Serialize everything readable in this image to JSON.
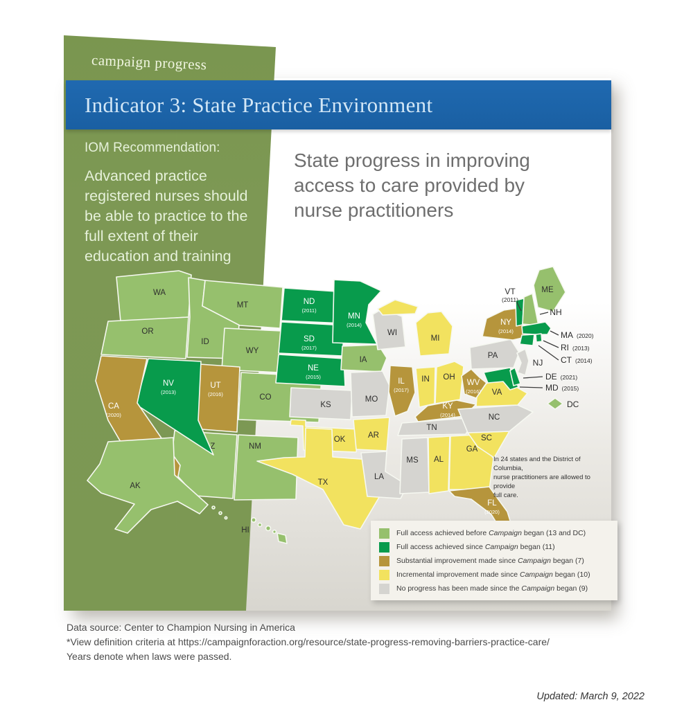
{
  "banner": {
    "tab_label": "campaign progress",
    "title": "Indicator 3: State Practice Environment"
  },
  "sidebar": {
    "heading": "IOM Recommendation:",
    "body": "Advanced practice\nregistered nurses should\nbe able to practice to the\nfull extent of their\neducation and training"
  },
  "main": {
    "title": "State progress in improving\naccess to care provided by\nnurse practitioners"
  },
  "map": {
    "note": "In 24 states and the District of Columbia,\nnurse practitioners are allowed to provide\nfull care.",
    "states": [
      {
        "id": "WA",
        "category": "full_before"
      },
      {
        "id": "OR",
        "category": "full_before"
      },
      {
        "id": "ID",
        "category": "full_before"
      },
      {
        "id": "MT",
        "category": "full_before"
      },
      {
        "id": "WY",
        "category": "full_before"
      },
      {
        "id": "CO",
        "category": "full_before"
      },
      {
        "id": "UT",
        "category": "substantial",
        "year_label": "(2016)"
      },
      {
        "id": "AZ",
        "category": "full_before"
      },
      {
        "id": "NM",
        "category": "full_before"
      },
      {
        "id": "NV",
        "category": "full_since",
        "year_label": "(2013)"
      },
      {
        "id": "CA",
        "category": "substantial",
        "year_label": "(2020)"
      },
      {
        "id": "ND",
        "category": "full_since",
        "year_label": "(2011)"
      },
      {
        "id": "SD",
        "category": "full_since",
        "year_label": "(2017)"
      },
      {
        "id": "NE",
        "category": "full_since",
        "year_label": "(2015)"
      },
      {
        "id": "KS",
        "category": "none"
      },
      {
        "id": "OK",
        "category": "incremental"
      },
      {
        "id": "TX",
        "category": "incremental"
      },
      {
        "id": "MN",
        "category": "full_since",
        "year_label": "(2014)"
      },
      {
        "id": "IA",
        "category": "full_before"
      },
      {
        "id": "MO",
        "category": "none"
      },
      {
        "id": "AR",
        "category": "incremental"
      },
      {
        "id": "LA",
        "category": "none"
      },
      {
        "id": "WI",
        "category": "none"
      },
      {
        "id": "IL",
        "category": "substantial",
        "year_label": "(2017)"
      },
      {
        "id": "MI",
        "category": "incremental"
      },
      {
        "id": "IN",
        "category": "incremental"
      },
      {
        "id": "OH",
        "category": "incremental"
      },
      {
        "id": "KY",
        "category": "substantial",
        "year_label": "(2014)"
      },
      {
        "id": "TN",
        "category": "none"
      },
      {
        "id": "MS",
        "category": "none"
      },
      {
        "id": "AL",
        "category": "incremental"
      },
      {
        "id": "GA",
        "category": "incremental"
      },
      {
        "id": "SC",
        "category": "incremental"
      },
      {
        "id": "NC",
        "category": "none"
      },
      {
        "id": "VA",
        "category": "incremental"
      },
      {
        "id": "WV",
        "category": "substantial",
        "year_label": "(2016)"
      },
      {
        "id": "FL",
        "category": "substantial",
        "year_label": "(2020)"
      },
      {
        "id": "PA",
        "category": "none"
      },
      {
        "id": "NY",
        "category": "substantial",
        "year_label": "(2014)"
      },
      {
        "id": "NJ",
        "category": "none"
      },
      {
        "id": "MD",
        "category": "full_since"
      },
      {
        "id": "DE",
        "category": "full_since"
      },
      {
        "id": "VT",
        "category": "full_since"
      },
      {
        "id": "NH",
        "category": "full_before"
      },
      {
        "id": "MA",
        "category": "full_since"
      },
      {
        "id": "RI",
        "category": "full_since"
      },
      {
        "id": "CT",
        "category": "full_since"
      },
      {
        "id": "ME",
        "category": "full_before"
      },
      {
        "id": "DC",
        "category": "full_before"
      },
      {
        "id": "AK",
        "category": "full_before"
      },
      {
        "id": "HI",
        "category": "full_before"
      }
    ],
    "callouts": [
      {
        "id": "VT",
        "label": "VT",
        "year_label": "(2011)"
      },
      {
        "id": "NH",
        "label": "NH"
      },
      {
        "id": "MA",
        "label": "MA",
        "year_label": "(2020)"
      },
      {
        "id": "RI",
        "label": "RI",
        "year_label": "(2013)"
      },
      {
        "id": "CT",
        "label": "CT",
        "year_label": "(2014)"
      },
      {
        "id": "DE",
        "label": "DE",
        "year_label": "(2021)"
      },
      {
        "id": "MD",
        "label": "MD",
        "year_label": "(2015)"
      },
      {
        "id": "NJ",
        "label": "NJ"
      },
      {
        "id": "DC",
        "label": "DC"
      }
    ]
  },
  "legend": {
    "items": [
      {
        "category": "full_before",
        "color": "#96C06D",
        "label": "Full access achieved before Campaign began (13 and DC)"
      },
      {
        "category": "full_since",
        "color": "#089B4C",
        "label": "Full access achieved since Campaign began (11)"
      },
      {
        "category": "substantial",
        "color": "#B6953C",
        "label": "Substantial improvement made since Campaign began (7)"
      },
      {
        "category": "incremental",
        "color": "#F2E25F",
        "label": "Incremental improvement made since Campaign began (10)"
      },
      {
        "category": "none",
        "color": "#D5D4D0",
        "label": "No progress has been made since the Campaign began (9)"
      }
    ]
  },
  "footer": {
    "lines": "Data source: Center to Champion Nursing in America\n*View definition criteria at https://campaignforaction.org/resource/state-progress-removing-barriers-practice-care/\nYears denote when laws were passed.",
    "updated": "Updated: March 9, 2022"
  },
  "colors": {
    "banner_blue": "#1C64A9",
    "panel_green": "#7D9854",
    "map_stroke": "#F6F8F1"
  }
}
